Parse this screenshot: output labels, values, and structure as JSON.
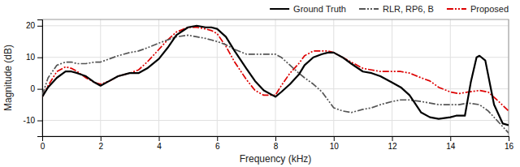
{
  "chart_data": {
    "type": "line",
    "xlabel": "Frequency (kHz)",
    "ylabel": "Magnitude (dB)",
    "xlim": [
      0,
      16
    ],
    "ylim": [
      -15,
      22
    ],
    "xticks": [
      0,
      2,
      4,
      6,
      8,
      10,
      12,
      14,
      16
    ],
    "yticks": [
      -10,
      0,
      10,
      20
    ],
    "grid": true,
    "legend": "upper right",
    "series": [
      {
        "name": "Ground Truth",
        "color": "#000000",
        "line_style": "solid",
        "x": [
          0,
          0.2,
          0.5,
          0.8,
          1.0,
          1.2,
          1.5,
          1.8,
          2.0,
          2.3,
          2.6,
          3.0,
          3.3,
          3.6,
          4.0,
          4.3,
          4.6,
          5.0,
          5.3,
          5.6,
          5.8,
          6.0,
          6.3,
          6.6,
          7.0,
          7.3,
          7.6,
          8.0,
          8.2,
          8.5,
          8.8,
          9.0,
          9.3,
          9.6,
          9.8,
          10.0,
          10.3,
          10.6,
          11.0,
          11.3,
          11.6,
          12.0,
          12.3,
          12.6,
          13.0,
          13.3,
          13.6,
          14.0,
          14.2,
          14.5,
          14.7,
          14.9,
          15.0,
          15.2,
          15.5,
          15.8,
          16.0
        ],
        "values": [
          -2.5,
          0.5,
          3.5,
          5.5,
          5.5,
          5.0,
          4.0,
          2.0,
          1.0,
          2.5,
          4.0,
          5.0,
          5.0,
          6.5,
          9.5,
          13.0,
          17.0,
          19.5,
          20.0,
          19.5,
          19.5,
          19.0,
          16.5,
          12.0,
          6.5,
          2.5,
          -0.5,
          -2.5,
          -1.0,
          1.5,
          4.5,
          7.5,
          10.0,
          11.0,
          11.5,
          11.5,
          10.0,
          8.0,
          5.5,
          5.0,
          4.0,
          2.0,
          0.5,
          -2.0,
          -7.5,
          -9.0,
          -9.5,
          -9.0,
          -8.5,
          -8.5,
          2.0,
          10.0,
          10.5,
          9.0,
          -5.0,
          -11.0,
          -11.5
        ]
      },
      {
        "name": "RLR, RP6, B",
        "color": "#555555",
        "line_style": "dashdotdot",
        "x": [
          0,
          0.2,
          0.5,
          0.8,
          1.0,
          1.2,
          1.5,
          1.8,
          2.0,
          2.3,
          2.6,
          3.0,
          3.3,
          3.6,
          4.0,
          4.3,
          4.6,
          5.0,
          5.3,
          5.6,
          5.8,
          6.0,
          6.3,
          6.6,
          7.0,
          7.3,
          7.6,
          8.0,
          8.2,
          8.5,
          8.8,
          9.0,
          9.3,
          9.6,
          9.8,
          10.0,
          10.3,
          10.6,
          11.0,
          11.3,
          11.6,
          12.0,
          12.3,
          12.6,
          13.0,
          13.3,
          13.6,
          14.0,
          14.3,
          14.6,
          15.0,
          15.3,
          15.6,
          16.0
        ],
        "values": [
          -2.0,
          3.5,
          7.5,
          8.5,
          8.5,
          8.0,
          8.0,
          8.5,
          8.5,
          9.5,
          10.5,
          11.5,
          12.0,
          13.0,
          14.5,
          15.5,
          16.5,
          17.0,
          16.5,
          16.0,
          15.5,
          15.0,
          14.0,
          12.5,
          11.0,
          11.0,
          11.0,
          11.0,
          10.0,
          7.5,
          5.0,
          3.5,
          1.5,
          -1.0,
          -3.5,
          -6.0,
          -7.0,
          -7.5,
          -6.5,
          -6.0,
          -5.0,
          -4.0,
          -3.5,
          -3.5,
          -4.0,
          -4.5,
          -5.0,
          -5.0,
          -5.0,
          -4.5,
          -5.0,
          -7.0,
          -10.0,
          -14.0
        ]
      },
      {
        "name": "Proposed",
        "color": "#dd0000",
        "line_style": "dashdotdot",
        "x": [
          0,
          0.2,
          0.5,
          0.8,
          1.0,
          1.2,
          1.5,
          1.8,
          2.0,
          2.3,
          2.6,
          3.0,
          3.3,
          3.6,
          4.0,
          4.3,
          4.6,
          5.0,
          5.3,
          5.6,
          5.8,
          6.0,
          6.3,
          6.6,
          7.0,
          7.3,
          7.6,
          8.0,
          8.2,
          8.5,
          8.8,
          9.0,
          9.3,
          9.6,
          9.8,
          10.0,
          10.3,
          10.6,
          11.0,
          11.3,
          11.6,
          12.0,
          12.3,
          12.6,
          13.0,
          13.3,
          13.6,
          14.0,
          14.3,
          14.6,
          15.0,
          15.3,
          15.6,
          16.0
        ],
        "values": [
          -2.5,
          1.0,
          5.5,
          7.0,
          6.5,
          5.5,
          3.5,
          2.0,
          1.5,
          2.5,
          4.0,
          5.0,
          6.0,
          8.5,
          12.5,
          15.5,
          18.0,
          19.5,
          19.5,
          19.0,
          18.5,
          17.5,
          13.5,
          8.5,
          3.0,
          -0.5,
          -2.0,
          -2.0,
          1.0,
          5.0,
          8.0,
          10.5,
          12.0,
          12.0,
          12.0,
          11.5,
          10.0,
          8.5,
          6.5,
          6.0,
          5.5,
          5.5,
          5.5,
          5.0,
          3.5,
          2.5,
          0.5,
          -1.0,
          -1.5,
          -1.0,
          -0.5,
          -1.0,
          -3.5,
          -7.0
        ]
      }
    ]
  }
}
